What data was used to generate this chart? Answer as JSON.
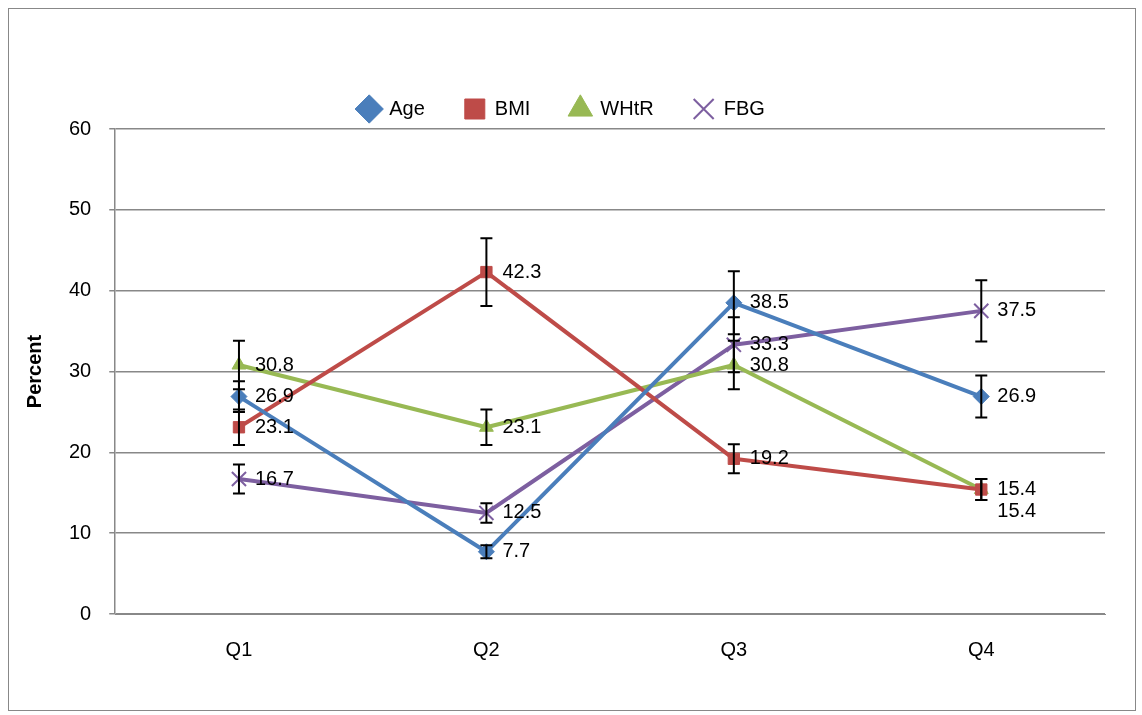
{
  "chart_data": {
    "type": "line",
    "ylabel": "Percent",
    "categories": [
      "Q1",
      "Q2",
      "Q3",
      "Q4"
    ],
    "ylim": [
      0,
      60
    ],
    "yticks": [
      0,
      10,
      20,
      30,
      40,
      50,
      60
    ],
    "grid": "y",
    "legend": "top",
    "data_labels": true,
    "line_style": "solid",
    "series": [
      {
        "name": "Age",
        "color": "#4a7ebb",
        "marker": "diamond",
        "values": [
          26.9,
          7.7,
          38.5,
          26.9
        ],
        "errors": [
          1.9,
          0.8,
          3.9,
          2.6
        ]
      },
      {
        "name": "BMI",
        "color": "#be4b48",
        "marker": "square",
        "values": [
          23.1,
          42.3,
          19.2,
          15.4
        ],
        "errors": [
          2.2,
          4.2,
          1.8,
          1.3
        ]
      },
      {
        "name": "WHtR",
        "color": "#98b954",
        "marker": "triangle",
        "values": [
          30.8,
          23.1,
          30.8,
          15.4
        ],
        "errors": [
          3.0,
          2.2,
          3.0,
          1.3
        ]
      },
      {
        "name": "FBG",
        "color": "#7d5fa0",
        "marker": "cross",
        "values": [
          16.7,
          12.5,
          33.3,
          37.5
        ],
        "errors": [
          1.8,
          1.2,
          3.4,
          3.8
        ]
      }
    ]
  }
}
